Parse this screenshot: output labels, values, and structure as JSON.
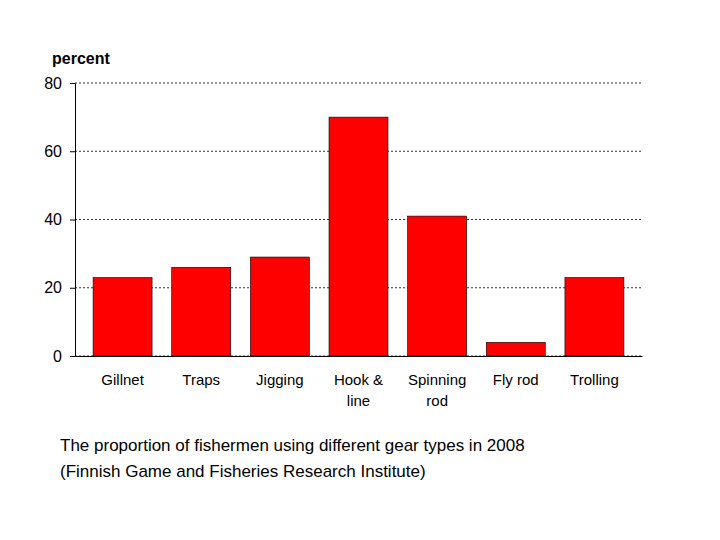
{
  "chart_data": {
    "type": "bar",
    "title": "The proportion of fishermen using different gear types in 2008",
    "subtitle": "(Finnish Game and Fisheries Research Institute)",
    "ylabel": "percent",
    "categories": [
      "Gillnet",
      "Traps",
      "Jigging",
      "Hook & line",
      "Spinning rod",
      "Fly rod",
      "Trolling"
    ],
    "values": [
      23,
      26,
      29,
      70,
      41,
      4,
      23
    ],
    "color": "#ff0000",
    "ylim": [
      0,
      80
    ],
    "yticks": [
      0,
      20,
      40,
      60,
      80
    ],
    "grid": true
  }
}
